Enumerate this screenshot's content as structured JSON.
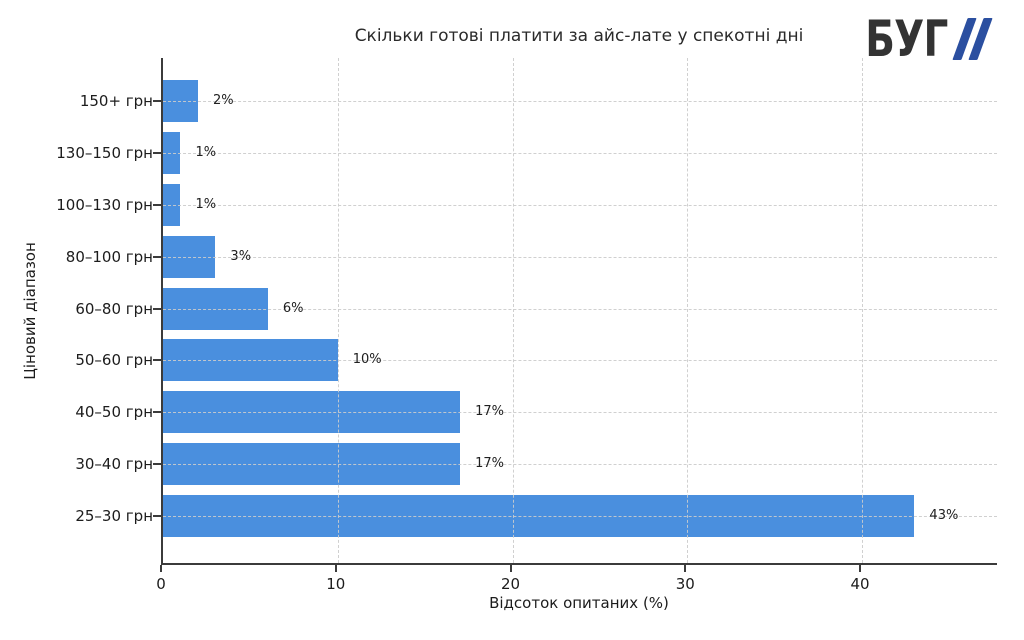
{
  "brand": {
    "text": "БУГ",
    "slashes": "//",
    "text_color": "#333333",
    "slash_color": "#2b4fa0"
  },
  "chart_data": {
    "type": "bar",
    "orientation": "horizontal",
    "title": "Скільки готові платити за айс-лате у спекотні дні",
    "xlabel": "Відсоток опитаних (%)",
    "ylabel": "Ціновий діапазон",
    "categories": [
      "150+ грн",
      "130–150 грн",
      "100–130 грн",
      "80–100 грн",
      "60–80 грн",
      "50–60 грн",
      "40–50 грн",
      "30–40 грн",
      "25–30 грн"
    ],
    "values": [
      2,
      1,
      1,
      3,
      6,
      10,
      17,
      17,
      43
    ],
    "value_labels": [
      "2%",
      "1%",
      "1%",
      "3%",
      "6%",
      "10%",
      "17%",
      "17%",
      "43%"
    ],
    "x_ticks": [
      0,
      10,
      20,
      30,
      40
    ],
    "x_tick_labels": [
      "0",
      "10",
      "20",
      "30",
      "40"
    ],
    "xlim": [
      0,
      47.8
    ],
    "bar_color": "#4a8fde",
    "grid": "dashed",
    "grid_color": "#cccccc",
    "grid_on": true,
    "legend_position": "none"
  }
}
